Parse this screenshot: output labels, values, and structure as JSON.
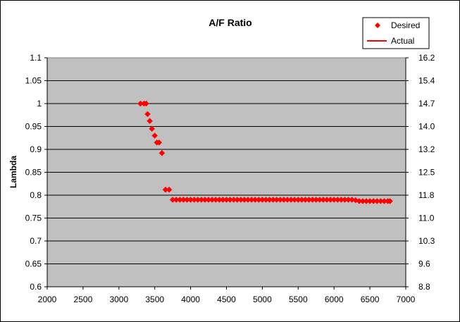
{
  "chart_data": {
    "type": "scatter",
    "title": "A/F Ratio",
    "xlabel": "",
    "ylabel": "Lambda",
    "y2label": "",
    "xlim": [
      2000,
      7000
    ],
    "ylim": [
      0.6,
      1.1
    ],
    "y2lim": [
      8.8,
      16.2
    ],
    "xticks": [
      "2000",
      "2500",
      "3000",
      "3500",
      "4000",
      "4500",
      "5000",
      "5500",
      "6000",
      "6500",
      "7000"
    ],
    "yticks": [
      "0.6",
      "0.65",
      "0.7",
      "0.75",
      "0.8",
      "0.85",
      "0.9",
      "0.95",
      "1",
      "1.05",
      "1.1"
    ],
    "y2ticks": [
      "8.8",
      "9.6",
      "10.3",
      "11.0",
      "11.8",
      "12.5",
      "13.2",
      "14.0",
      "14.7",
      "15.4",
      "16.2"
    ],
    "grid": "horizontal",
    "legend_position": "top-right",
    "colors": {
      "plot_bg": "#c0c0c0",
      "series": "#ff0000"
    },
    "legend": [
      {
        "name": "Desired",
        "marker": "diamond"
      },
      {
        "name": "Actual",
        "marker": "line"
      }
    ],
    "series": [
      {
        "name": "Desired",
        "marker": "diamond",
        "x": [
          3300,
          3350,
          3380,
          3400,
          3430,
          3460,
          3500,
          3530,
          3560,
          3600,
          3650,
          3700,
          3750,
          3800,
          3850,
          3900,
          3950,
          4000,
          4050,
          4100,
          4150,
          4200,
          4250,
          4300,
          4350,
          4400,
          4450,
          4500,
          4550,
          4600,
          4650,
          4700,
          4750,
          4800,
          4850,
          4900,
          4950,
          5000,
          5050,
          5100,
          5150,
          5200,
          5250,
          5300,
          5350,
          5400,
          5450,
          5500,
          5550,
          5600,
          5650,
          5700,
          5750,
          5800,
          5850,
          5900,
          5950,
          6000,
          6050,
          6100,
          6150,
          6200,
          6250,
          6300,
          6350,
          6400,
          6450,
          6500,
          6550,
          6600,
          6650,
          6700,
          6750,
          6780
        ],
        "y": [
          1.0,
          1.0,
          1.0,
          0.977,
          0.962,
          0.945,
          0.93,
          0.915,
          0.915,
          0.892,
          0.812,
          0.812,
          0.79,
          0.79,
          0.79,
          0.79,
          0.79,
          0.79,
          0.79,
          0.79,
          0.79,
          0.79,
          0.79,
          0.79,
          0.79,
          0.79,
          0.79,
          0.79,
          0.79,
          0.79,
          0.79,
          0.79,
          0.79,
          0.79,
          0.79,
          0.79,
          0.79,
          0.79,
          0.79,
          0.79,
          0.79,
          0.79,
          0.79,
          0.79,
          0.79,
          0.79,
          0.79,
          0.79,
          0.79,
          0.79,
          0.79,
          0.79,
          0.79,
          0.79,
          0.79,
          0.79,
          0.79,
          0.79,
          0.79,
          0.79,
          0.79,
          0.79,
          0.79,
          0.789,
          0.787,
          0.787,
          0.787,
          0.787,
          0.787,
          0.787,
          0.787,
          0.787,
          0.787,
          0.787
        ]
      },
      {
        "name": "Actual",
        "x": [],
        "y": []
      }
    ]
  }
}
